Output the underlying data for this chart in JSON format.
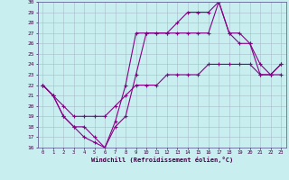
{
  "xlabel": "Windchill (Refroidissement éolien,°C)",
  "bg_color": "#c8eef0",
  "line_color": "#880088",
  "grid_color": "#aabbcc",
  "spine_color": "#666699",
  "tick_color": "#440044",
  "xlim": [
    -0.5,
    23.5
  ],
  "ylim": [
    16,
    30
  ],
  "xticks": [
    0,
    1,
    2,
    3,
    4,
    5,
    6,
    7,
    8,
    9,
    10,
    11,
    12,
    13,
    14,
    15,
    16,
    17,
    18,
    19,
    20,
    21,
    22,
    23
  ],
  "yticks": [
    16,
    17,
    18,
    19,
    20,
    21,
    22,
    23,
    24,
    25,
    26,
    27,
    28,
    29,
    30
  ],
  "line1_x": [
    0,
    1,
    2,
    3,
    4,
    5,
    6,
    7,
    8,
    9,
    10,
    11,
    12,
    13,
    14,
    15,
    16,
    17,
    18,
    19,
    20,
    21,
    22,
    23
  ],
  "line1_y": [
    22,
    21,
    20,
    19,
    19,
    19,
    19,
    20,
    21,
    22,
    22,
    22,
    23,
    23,
    23,
    23,
    24,
    24,
    24,
    24,
    24,
    23,
    23,
    23
  ],
  "line2_x": [
    0,
    1,
    2,
    3,
    4,
    5,
    6,
    7,
    8,
    9,
    10,
    11,
    12,
    13,
    14,
    15,
    16,
    17,
    18,
    19,
    20,
    21,
    22,
    23
  ],
  "line2_y": [
    22,
    21,
    19,
    18,
    17,
    16.5,
    16,
    18,
    19,
    23,
    27,
    27,
    27,
    27,
    27,
    27,
    27,
    30,
    27,
    26,
    26,
    23,
    23,
    24
  ],
  "line3_x": [
    0,
    1,
    2,
    3,
    4,
    5,
    6,
    7,
    8,
    9,
    10,
    11,
    12,
    13,
    14,
    15,
    16,
    17,
    18,
    19,
    20,
    21,
    22,
    23
  ],
  "line3_y": [
    22,
    21,
    19,
    18,
    18,
    17,
    16,
    18.5,
    22,
    27,
    27,
    27,
    27,
    28,
    29,
    29,
    29,
    30,
    27,
    27,
    26,
    24,
    23,
    24
  ]
}
